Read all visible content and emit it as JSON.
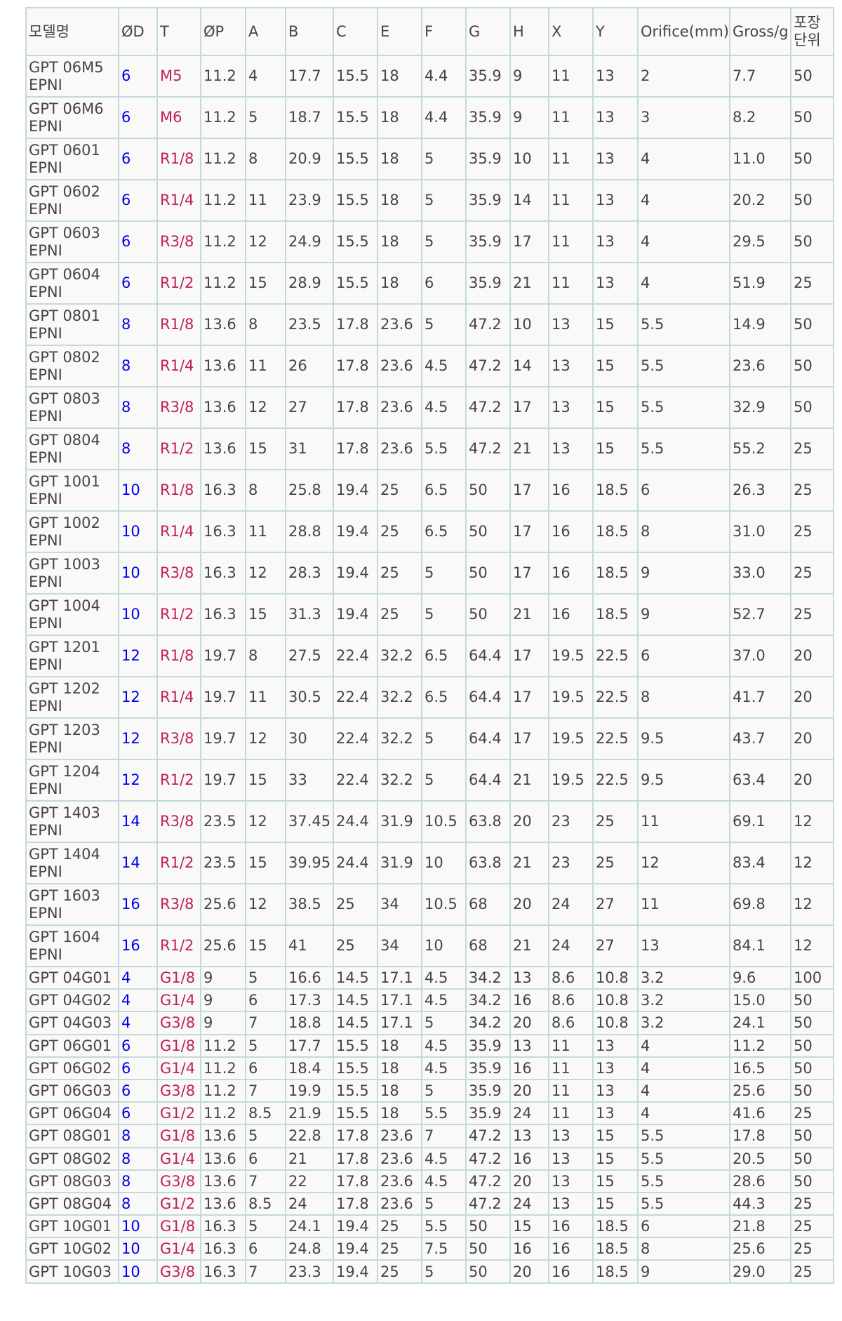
{
  "headers": [
    "모델명",
    "ØD",
    "T",
    "ØP",
    "A",
    "B",
    "C",
    "E",
    "F",
    "G",
    "H",
    "X",
    "Y",
    "Orifice(mm)",
    "Gross/g",
    "포장\n단위"
  ],
  "rows": [
    [
      "GPT 06M5 EPNI",
      "6",
      "M5",
      "11.2",
      "4",
      "17.7",
      "15.5",
      "18",
      "4.4",
      "35.9",
      "9",
      "11",
      "13",
      "2",
      "7.7",
      "50"
    ],
    [
      "GPT 06M6 EPNI",
      "6",
      "M6",
      "11.2",
      "5",
      "18.7",
      "15.5",
      "18",
      "4.4",
      "35.9",
      "9",
      "11",
      "13",
      "3",
      "8.2",
      "50"
    ],
    [
      "GPT 0601 EPNI",
      "6",
      "R1/8",
      "11.2",
      "8",
      "20.9",
      "15.5",
      "18",
      "5",
      "35.9",
      "10",
      "11",
      "13",
      "4",
      "11.0",
      "50"
    ],
    [
      "GPT 0602 EPNI",
      "6",
      "R1/4",
      "11.2",
      "11",
      "23.9",
      "15.5",
      "18",
      "5",
      "35.9",
      "14",
      "11",
      "13",
      "4",
      "20.2",
      "50"
    ],
    [
      "GPT 0603 EPNI",
      "6",
      "R3/8",
      "11.2",
      "12",
      "24.9",
      "15.5",
      "18",
      "5",
      "35.9",
      "17",
      "11",
      "13",
      "4",
      "29.5",
      "50"
    ],
    [
      "GPT 0604 EPNI",
      "6",
      "R1/2",
      "11.2",
      "15",
      "28.9",
      "15.5",
      "18",
      "6",
      "35.9",
      "21",
      "11",
      "13",
      "4",
      "51.9",
      "25"
    ],
    [
      "GPT 0801 EPNI",
      "8",
      "R1/8",
      "13.6",
      "8",
      "23.5",
      "17.8",
      "23.6",
      "5",
      "47.2",
      "10",
      "13",
      "15",
      "5.5",
      "14.9",
      "50"
    ],
    [
      "GPT 0802 EPNI",
      "8",
      "R1/4",
      "13.6",
      "11",
      "26",
      "17.8",
      "23.6",
      "4.5",
      "47.2",
      "14",
      "13",
      "15",
      "5.5",
      "23.6",
      "50"
    ],
    [
      "GPT 0803 EPNI",
      "8",
      "R3/8",
      "13.6",
      "12",
      "27",
      "17.8",
      "23.6",
      "4.5",
      "47.2",
      "17",
      "13",
      "15",
      "5.5",
      "32.9",
      "50"
    ],
    [
      "GPT 0804 EPNI",
      "8",
      "R1/2",
      "13.6",
      "15",
      "31",
      "17.8",
      "23.6",
      "5.5",
      "47.2",
      "21",
      "13",
      "15",
      "5.5",
      "55.2",
      "25"
    ],
    [
      "GPT 1001 EPNI",
      "10",
      "R1/8",
      "16.3",
      "8",
      "25.8",
      "19.4",
      "25",
      "6.5",
      "50",
      "17",
      "16",
      "18.5",
      "6",
      "26.3",
      "25"
    ],
    [
      "GPT 1002 EPNI",
      "10",
      "R1/4",
      "16.3",
      "11",
      "28.8",
      "19.4",
      "25",
      "6.5",
      "50",
      "17",
      "16",
      "18.5",
      "8",
      "31.0",
      "25"
    ],
    [
      "GPT 1003 EPNI",
      "10",
      "R3/8",
      "16.3",
      "12",
      "28.3",
      "19.4",
      "25",
      "5",
      "50",
      "17",
      "16",
      "18.5",
      "9",
      "33.0",
      "25"
    ],
    [
      "GPT 1004 EPNI",
      "10",
      "R1/2",
      "16.3",
      "15",
      "31.3",
      "19.4",
      "25",
      "5",
      "50",
      "21",
      "16",
      "18.5",
      "9",
      "52.7",
      "25"
    ],
    [
      "GPT 1201 EPNI",
      "12",
      "R1/8",
      "19.7",
      "8",
      "27.5",
      "22.4",
      "32.2",
      "6.5",
      "64.4",
      "17",
      "19.5",
      "22.5",
      "6",
      "37.0",
      "20"
    ],
    [
      "GPT 1202 EPNI",
      "12",
      "R1/4",
      "19.7",
      "11",
      "30.5",
      "22.4",
      "32.2",
      "6.5",
      "64.4",
      "17",
      "19.5",
      "22.5",
      "8",
      "41.7",
      "20"
    ],
    [
      "GPT 1203 EPNI",
      "12",
      "R3/8",
      "19.7",
      "12",
      "30",
      "22.4",
      "32.2",
      "5",
      "64.4",
      "17",
      "19.5",
      "22.5",
      "9.5",
      "43.7",
      "20"
    ],
    [
      "GPT 1204 EPNI",
      "12",
      "R1/2",
      "19.7",
      "15",
      "33",
      "22.4",
      "32.2",
      "5",
      "64.4",
      "21",
      "19.5",
      "22.5",
      "9.5",
      "63.4",
      "20"
    ],
    [
      "GPT 1403 EPNI",
      "14",
      "R3/8",
      "23.5",
      "12",
      "37.45",
      "24.4",
      "31.9",
      "10.5",
      "63.8",
      "20",
      "23",
      "25",
      "11",
      "69.1",
      "12"
    ],
    [
      "GPT 1404 EPNI",
      "14",
      "R1/2",
      "23.5",
      "15",
      "39.95",
      "24.4",
      "31.9",
      "10",
      "63.8",
      "21",
      "23",
      "25",
      "12",
      "83.4",
      "12"
    ],
    [
      "GPT 1603 EPNI",
      "16",
      "R3/8",
      "25.6",
      "12",
      "38.5",
      "25",
      "34",
      "10.5",
      "68",
      "20",
      "24",
      "27",
      "11",
      "69.8",
      "12"
    ],
    [
      "GPT 1604 EPNI",
      "16",
      "R1/2",
      "25.6",
      "15",
      "41",
      "25",
      "34",
      "10",
      "68",
      "21",
      "24",
      "27",
      "13",
      "84.1",
      "12"
    ],
    [
      "GPT 04G01",
      "4",
      "G1/8",
      "9",
      "5",
      "16.6",
      "14.5",
      "17.1",
      "4.5",
      "34.2",
      "13",
      "8.6",
      "10.8",
      "3.2",
      "9.6",
      "100"
    ],
    [
      "GPT 04G02",
      "4",
      "G1/4",
      "9",
      "6",
      "17.3",
      "14.5",
      "17.1",
      "4.5",
      "34.2",
      "16",
      "8.6",
      "10.8",
      "3.2",
      "15.0",
      "50"
    ],
    [
      "GPT 04G03",
      "4",
      "G3/8",
      "9",
      "7",
      "18.8",
      "14.5",
      "17.1",
      "5",
      "34.2",
      "20",
      "8.6",
      "10.8",
      "3.2",
      "24.1",
      "50"
    ],
    [
      "GPT 06G01",
      "6",
      "G1/8",
      "11.2",
      "5",
      "17.7",
      "15.5",
      "18",
      "4.5",
      "35.9",
      "13",
      "11",
      "13",
      "4",
      "11.2",
      "50"
    ],
    [
      "GPT 06G02",
      "6",
      "G1/4",
      "11.2",
      "6",
      "18.4",
      "15.5",
      "18",
      "4.5",
      "35.9",
      "16",
      "11",
      "13",
      "4",
      "16.5",
      "50"
    ],
    [
      "GPT 06G03",
      "6",
      "G3/8",
      "11.2",
      "7",
      "19.9",
      "15.5",
      "18",
      "5",
      "35.9",
      "20",
      "11",
      "13",
      "4",
      "25.6",
      "50"
    ],
    [
      "GPT 06G04",
      "6",
      "G1/2",
      "11.2",
      "8.5",
      "21.9",
      "15.5",
      "18",
      "5.5",
      "35.9",
      "24",
      "11",
      "13",
      "4",
      "41.6",
      "25"
    ],
    [
      "GPT 08G01",
      "8",
      "G1/8",
      "13.6",
      "5",
      "22.8",
      "17.8",
      "23.6",
      "7",
      "47.2",
      "13",
      "13",
      "15",
      "5.5",
      "17.8",
      "50"
    ],
    [
      "GPT 08G02",
      "8",
      "G1/4",
      "13.6",
      "6",
      "21",
      "17.8",
      "23.6",
      "4.5",
      "47.2",
      "16",
      "13",
      "15",
      "5.5",
      "20.5",
      "50"
    ],
    [
      "GPT 08G03",
      "8",
      "G3/8",
      "13.6",
      "7",
      "22",
      "17.8",
      "23.6",
      "4.5",
      "47.2",
      "20",
      "13",
      "15",
      "5.5",
      "28.6",
      "50"
    ],
    [
      "GPT 08G04",
      "8",
      "G1/2",
      "13.6",
      "8.5",
      "24",
      "17.8",
      "23.6",
      "5",
      "47.2",
      "24",
      "13",
      "15",
      "5.5",
      "44.3",
      "25"
    ],
    [
      "GPT 10G01",
      "10",
      "G1/8",
      "16.3",
      "5",
      "24.1",
      "19.4",
      "25",
      "5.5",
      "50",
      "15",
      "16",
      "18.5",
      "6",
      "21.8",
      "25"
    ],
    [
      "GPT 10G02",
      "10",
      "G1/4",
      "16.3",
      "6",
      "24.8",
      "19.4",
      "25",
      "7.5",
      "50",
      "16",
      "16",
      "18.5",
      "8",
      "25.6",
      "25"
    ],
    [
      "GPT 10G03",
      "10",
      "G3/8",
      "16.3",
      "7",
      "23.3",
      "19.4",
      "25",
      "5",
      "50",
      "20",
      "16",
      "18.5",
      "9",
      "29.0",
      "25"
    ]
  ],
  "colors": {
    "border": "#c4d9dd",
    "cell_background": "#f9f9f7",
    "text": "#454545",
    "od_column": "#0000f0",
    "thread_column": "#c0205a"
  }
}
